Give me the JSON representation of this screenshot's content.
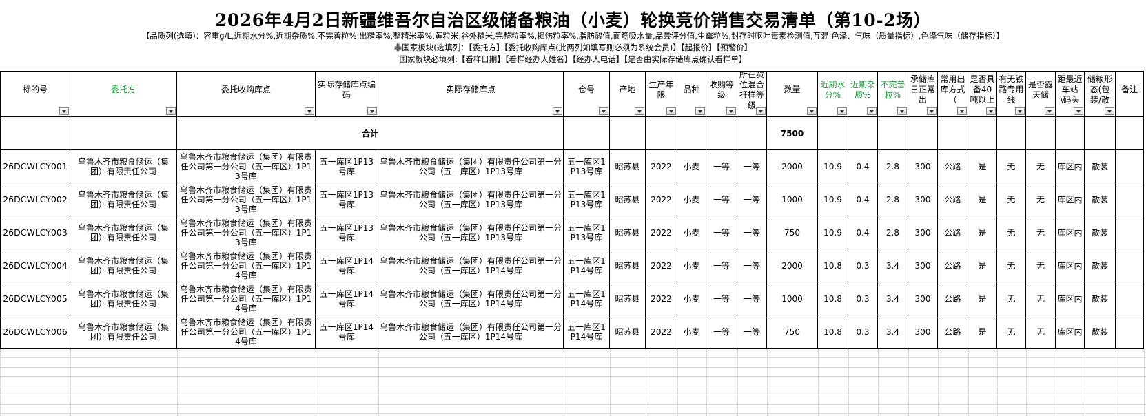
{
  "header": {
    "title": "2026年4月2日新疆维吾尔自治区级储备粮油（小麦）轮换竞价销售交易清单（第10-2场）",
    "notes": [
      "【品质列(选填)：容重g/L,近期水分%,近期杂质%,不完善粒%,出糙率%,整精米率%,黄粒米,谷外糙米,完整粒率%,损伤粒率%,脂肪酸值,面筋吸水量,品尝评分值,生霉粒%,封存时呕吐毒素检测值,互混,色泽、气味（质量指标）,色泽气味（储存指标）】",
      "非国家板块(选填列：【委托方】【委托收购库点(此两列如填写则必须为系统会员)】【起报价】【预警价】",
      "国家板块必填列:【看样日期】【看样经办人姓名】【经办人电话】【是否由实际存储库点确认看样单】"
    ]
  },
  "table": {
    "columns": [
      "标的号",
      "委托方",
      "委托收购库点",
      "实际存储库点编码",
      "实际存储库点",
      "仓号",
      "产地",
      "生产年限",
      "品种",
      "收购等级",
      "所在货位混合扦样等级",
      "数量",
      "近期水分%",
      "近期杂质%",
      "不完善粒%",
      "承储库日正常出",
      "常用出库方式（",
      "是否具备40吨以上",
      "有无铁路专用线",
      "是否露天储",
      "距最近车站\\码头",
      "储粮形态(包装/散",
      "备注"
    ],
    "total": {
      "label": "合计",
      "quantity": 7500
    },
    "rows": [
      [
        "26DCWLCY001",
        "乌鲁木齐市粮食储运（集团）有限责任公司",
        "乌鲁木齐市粮食储运（集团）有限责任公司第一分公司（五一库区）1P13号库",
        "五一库区1P13号库",
        "乌鲁木齐市粮食储运（集团）有限责任公司第一分公司（五一库区）1P13号库",
        "五一库区1P13号库",
        "昭苏县",
        2022,
        "小麦",
        "一等",
        "一等",
        2000,
        10.9,
        0.4,
        2.8,
        300,
        "公路",
        "是",
        "无",
        "无",
        "库区内",
        "散装"
      ],
      [
        "26DCWLCY002",
        "乌鲁木齐市粮食储运（集团）有限责任公司",
        "乌鲁木齐市粮食储运（集团）有限责任公司第一分公司（五一库区）1P13号库",
        "五一库区1P13号库",
        "乌鲁木齐市粮食储运（集团）有限责任公司第一分公司（五一库区）1P13号库",
        "五一库区1P13号库",
        "昭苏县",
        2022,
        "小麦",
        "一等",
        "一等",
        1000,
        10.9,
        0.4,
        2.8,
        300,
        "公路",
        "是",
        "无",
        "无",
        "库区内",
        "散装"
      ],
      [
        "26DCWLCY003",
        "乌鲁木齐市粮食储运（集团）有限责任公司",
        "乌鲁木齐市粮食储运（集团）有限责任公司第一分公司（五一库区）1P13号库",
        "五一库区1P13号库",
        "乌鲁木齐市粮食储运（集团）有限责任公司第一分公司（五一库区）1P13号库",
        "五一库区1P13号库",
        "昭苏县",
        2022,
        "小麦",
        "一等",
        "一等",
        750,
        10.9,
        0.4,
        2.8,
        300,
        "公路",
        "是",
        "无",
        "无",
        "库区内",
        "散装"
      ],
      [
        "26DCWLCY004",
        "乌鲁木齐市粮食储运（集团）有限责任公司",
        "乌鲁木齐市粮食储运（集团）有限责任公司第一分公司（五一库区）1P14号库",
        "五一库区1P14号库",
        "乌鲁木齐市粮食储运（集团）有限责任公司第一分公司（五一库区）1P14号库",
        "五一库区1P14号库",
        "昭苏县",
        2022,
        "小麦",
        "一等",
        "一等",
        2000,
        10.8,
        0.3,
        3.4,
        300,
        "公路",
        "是",
        "无",
        "无",
        "库区内",
        "散装"
      ],
      [
        "26DCWLCY005",
        "乌鲁木齐市粮食储运（集团）有限责任公司",
        "乌鲁木齐市粮食储运（集团）有限责任公司第一分公司（五一库区）1P14号库",
        "五一库区1P14号库",
        "乌鲁木齐市粮食储运（集团）有限责任公司第一分公司（五一库区）1P14号库",
        "五一库区1P14号库",
        "昭苏县",
        2022,
        "小麦",
        "一等",
        "一等",
        1000,
        10.8,
        0.3,
        3.4,
        300,
        "公路",
        "是",
        "无",
        "无",
        "库区内",
        "散装"
      ],
      [
        "26DCWLCY006",
        "乌鲁木齐市粮食储运（集团）有限责任公司",
        "乌鲁木齐市粮食储运（集团）有限责任公司第一分公司（五一库区）1P14号库",
        "五一库区1P14号库",
        "乌鲁木齐市粮食储运（集团）有限责任公司第一分公司（五一库区）1P14号库",
        "五一库区1P14号库",
        "昭苏县",
        2022,
        "小麦",
        "一等",
        "一等",
        750,
        10.8,
        0.3,
        3.4,
        300,
        "公路",
        "是",
        "无",
        "无",
        "库区内",
        "散装"
      ]
    ]
  }
}
